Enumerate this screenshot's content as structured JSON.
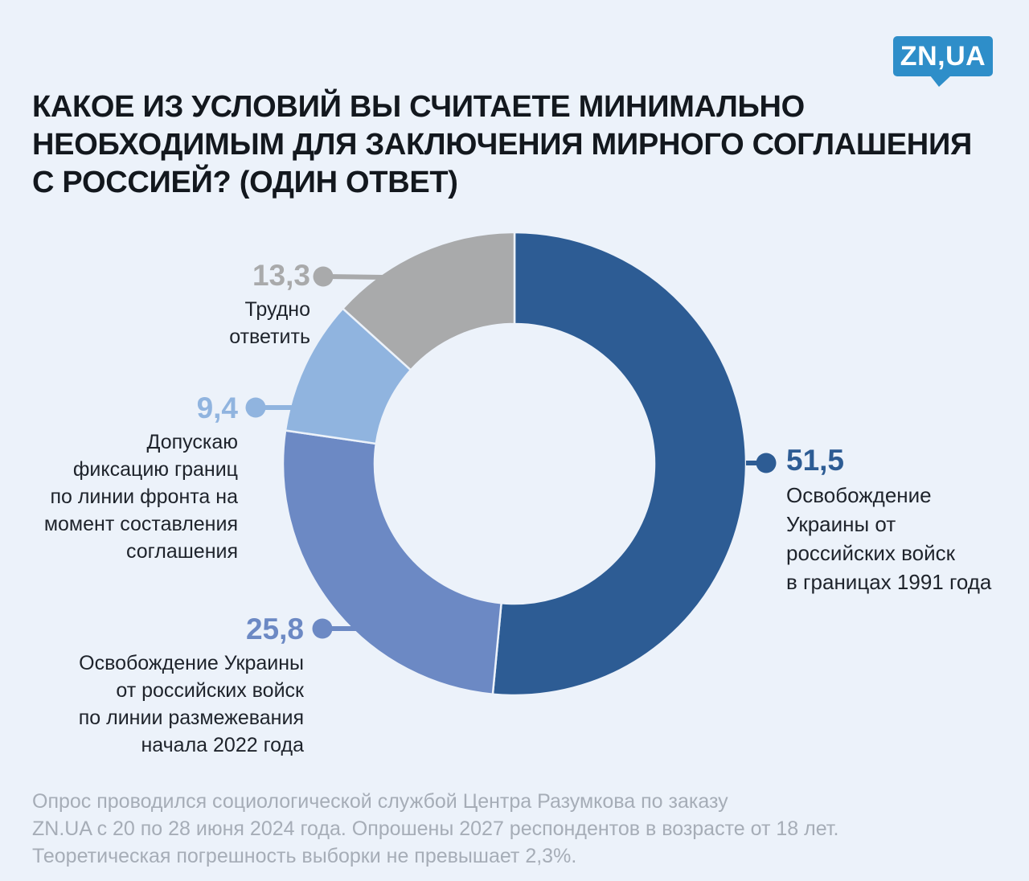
{
  "page": {
    "background": "#ecf2fa"
  },
  "logo": {
    "text": "ZN,UA",
    "color": "#2e8ec9"
  },
  "title": {
    "lines": [
      "КАКОЕ ИЗ УСЛОВИЙ ВЫ СЧИТАЕТЕ МИНИМАЛЬНО",
      "НЕОБХОДИМЫМ ДЛЯ ЗАКЛЮЧЕНИЯ МИРНОГО СОГЛАШЕНИЯ",
      "С РОССИЕЙ? (ОДИН ОТВЕТ)"
    ]
  },
  "chart_data": {
    "type": "pie",
    "subtype": "donut",
    "title": "Какое из условий вы считаете минимально необходимым для заключения мирного соглашения с Россией? (один ответ)",
    "units": "percent",
    "start_angle_deg": 0,
    "direction": "clockwise",
    "legend_position": "callouts",
    "segments": [
      {
        "label": "Освобождение Украины от российских войск в границах 1991 года",
        "value": 51.5,
        "value_label": "51,5",
        "color": "#2d5c94"
      },
      {
        "label": "Освобождение Украины от российских войск по линии размежевания начала 2022 года",
        "value": 25.8,
        "value_label": "25,8",
        "color": "#6c89c4"
      },
      {
        "label": "Допускаю фиксацию границ по линии фронта на момент составления соглашения",
        "value": 9.4,
        "value_label": "9,4",
        "color": "#90b4df"
      },
      {
        "label": "Трудно ответить",
        "value": 13.3,
        "value_label": "13,3",
        "color": "#a9aaab"
      }
    ]
  },
  "callouts": {
    "c515": {
      "value": "51,5",
      "lines": [
        "Освобождение",
        "Украины от",
        "российских войск",
        "в границах 1991 года"
      ]
    },
    "c258": {
      "value": "25,8",
      "lines": [
        "Освобождение Украины",
        "от российских войск",
        "по линии размежевания",
        "начала 2022 года"
      ]
    },
    "c94": {
      "value": "9,4",
      "lines": [
        "Допускаю",
        "фиксацию границ",
        "по линии фронта на",
        "момент составления",
        "соглашения"
      ]
    },
    "c133": {
      "value": "13,3",
      "lines": [
        "Трудно",
        "ответить"
      ]
    }
  },
  "footer": {
    "lines": [
      "Опрос проводился социологической службой Центра Разумкова по заказу",
      "ZN.UA с 20 по 28 июня 2024 года. Опрошены 2027 респондентов в возрасте от 18 лет.",
      "Теоретическая погрешность выборки не превышает 2,3%."
    ]
  }
}
